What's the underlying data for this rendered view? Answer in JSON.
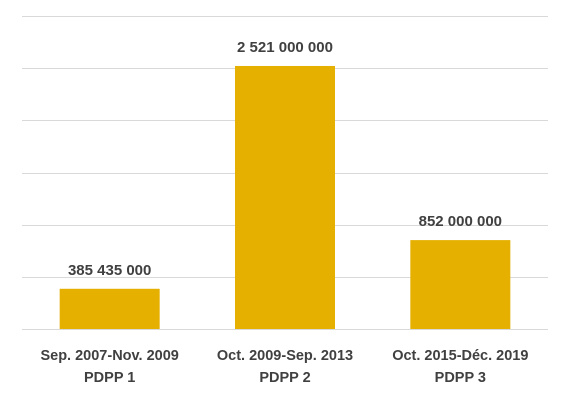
{
  "chart_data": {
    "type": "bar",
    "categories": [
      [
        "Sep. 2007-Nov. 2009",
        "PDPP 1"
      ],
      [
        "Oct. 2009-Sep. 2013",
        "PDPP 2"
      ],
      [
        "Oct. 2015-Déc. 2019",
        "PDPP 3"
      ]
    ],
    "values": [
      385435000,
      2521000000,
      852000000
    ],
    "data_labels": [
      "385 435 000",
      "2 521 000 000",
      "852 000 000"
    ],
    "title": "",
    "xlabel": "",
    "ylabel": "",
    "ylim": [
      0,
      3000000000
    ],
    "y_gridline_step": 500000000,
    "y_tick_labels_visible": false,
    "grid": true,
    "legend": "none",
    "bar_color": "#e6b000"
  }
}
